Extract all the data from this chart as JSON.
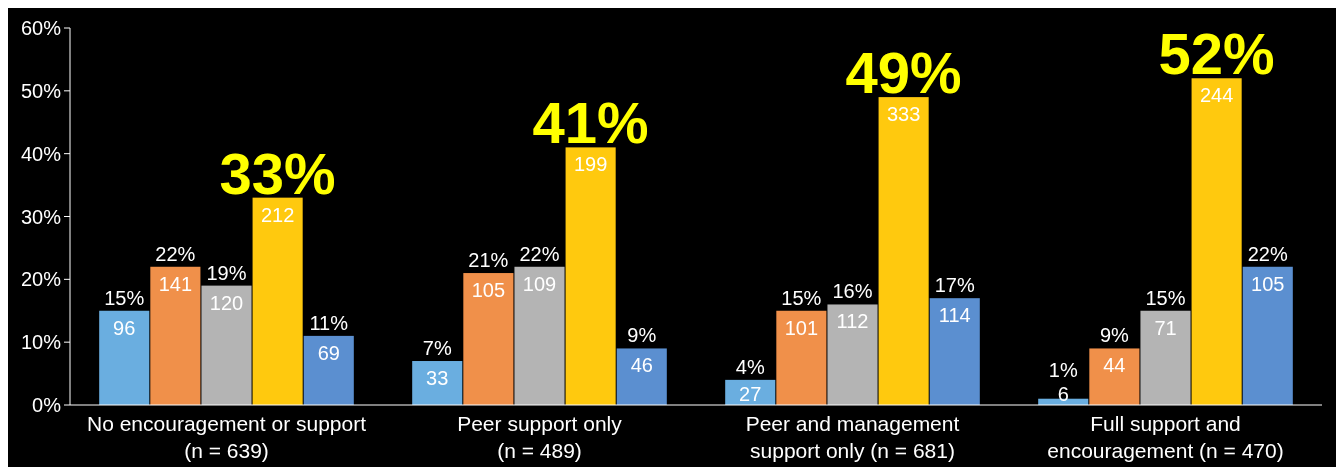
{
  "chart_data": {
    "type": "bar",
    "categories": [
      "No encouragement or support\n(n = 639)",
      "Peer support only\n(n = 489)",
      "Peer and management\nsupport only (n = 681)",
      "Full support and\nencouragement (n = 470)"
    ],
    "series": [
      {
        "color": "#6aaee0",
        "values": [
          15,
          7,
          4,
          1
        ],
        "value_labels": [
          "15%",
          "7%",
          "4%",
          "1%"
        ]
      },
      {
        "color": "#f0904a",
        "values": [
          22,
          21,
          15,
          9
        ],
        "value_labels": [
          "22%",
          "21%",
          "15%",
          "9%"
        ]
      },
      {
        "color": "#b4b4b4",
        "values": [
          19,
          22,
          16,
          15
        ],
        "value_labels": [
          "19%",
          "22%",
          "16%",
          "15%"
        ]
      },
      {
        "color": "#ffc90e",
        "values": [
          33,
          41,
          49,
          52
        ],
        "value_labels": [
          null,
          null,
          null,
          null
        ]
      },
      {
        "color": "#5b8fd0",
        "values": [
          11,
          9,
          17,
          22
        ],
        "value_labels": [
          "11%",
          "9%",
          "17%",
          "22%"
        ]
      }
    ],
    "ylim": [
      0,
      60
    ],
    "yticks": [
      {
        "value": 0,
        "label": "0%"
      },
      {
        "value": 10,
        "label": "10%"
      },
      {
        "value": 20,
        "label": "20%"
      },
      {
        "value": 30,
        "label": "30%"
      },
      {
        "value": 40,
        "label": "40%"
      },
      {
        "value": 50,
        "label": "50%"
      },
      {
        "value": 60,
        "label": "60%"
      }
    ],
    "grid": false,
    "annotations": [
      "33%",
      "41%",
      "49%",
      "52%",
      "96",
      "141",
      "120",
      "212",
      "69",
      "33",
      "105",
      "109",
      "199",
      "46",
      "27",
      "101",
      "112",
      "333",
      "114",
      "6",
      "44",
      "71",
      "244",
      "105"
    ]
  }
}
